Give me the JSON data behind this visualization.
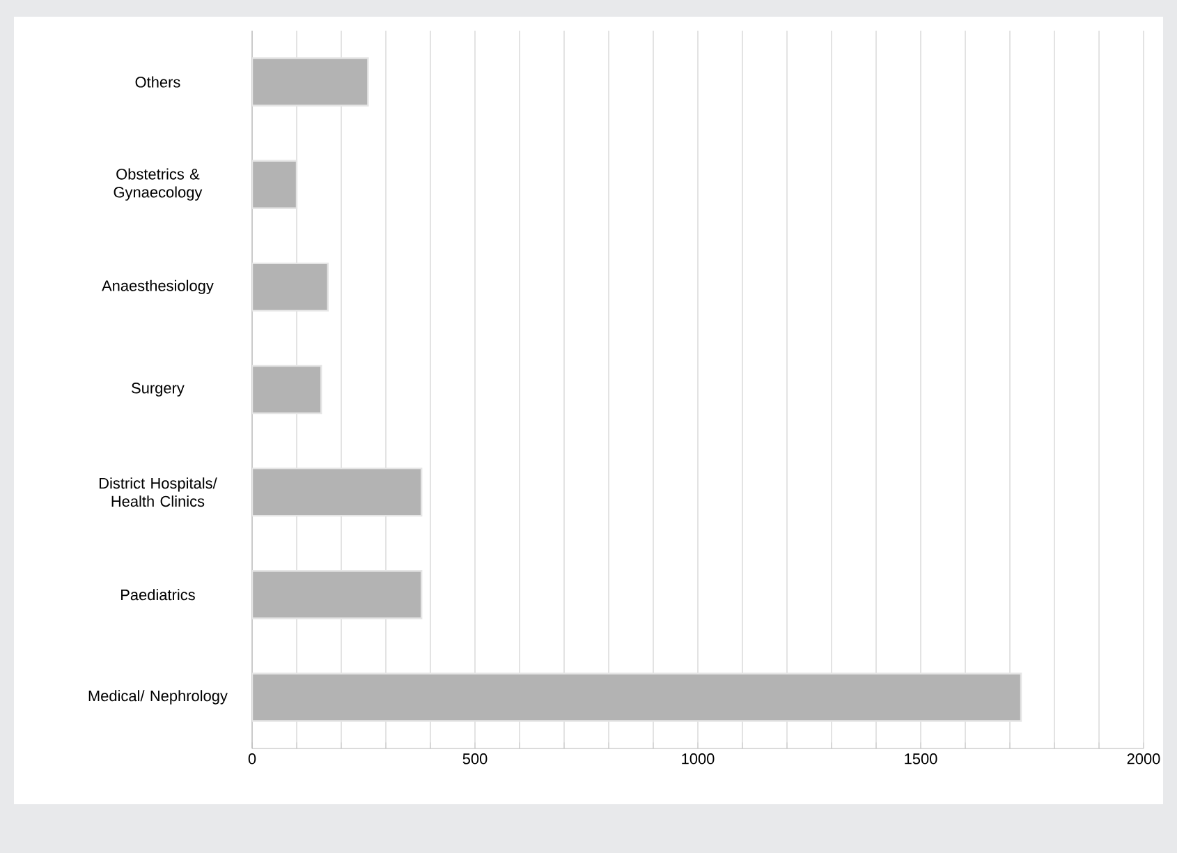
{
  "chart_data": {
    "type": "bar",
    "orientation": "horizontal",
    "categories": [
      "Others",
      "Obstetrics & Gynaecology",
      "Anaesthesiology",
      "Surgery",
      "District Hospitals/ Health Clinics",
      "Paediatrics",
      "Medical/ Nephrology"
    ],
    "values": [
      260,
      100,
      170,
      155,
      380,
      380,
      1725
    ],
    "color": "#b3b3b3",
    "xlim": [
      0,
      2000
    ],
    "xticks": [
      0,
      {
        "value": 100,
        "label": null
      },
      {
        "value": 200,
        "label": null
      },
      {
        "value": 300,
        "label": null
      },
      {
        "value": 400,
        "label": null
      },
      500,
      {
        "value": 600,
        "label": null
      },
      {
        "value": 700,
        "label": null
      },
      {
        "value": 800,
        "label": null
      },
      {
        "value": 900,
        "label": null
      },
      1000,
      {
        "value": 1100,
        "label": null
      },
      {
        "value": 1200,
        "label": null
      },
      {
        "value": 1300,
        "label": null
      },
      {
        "value": 1400,
        "label": null
      },
      1500,
      {
        "value": 1600,
        "label": null
      },
      {
        "value": 1700,
        "label": null
      },
      {
        "value": 1800,
        "label": null
      },
      {
        "value": 1900,
        "label": null
      },
      2000
    ],
    "grid": "x"
  }
}
